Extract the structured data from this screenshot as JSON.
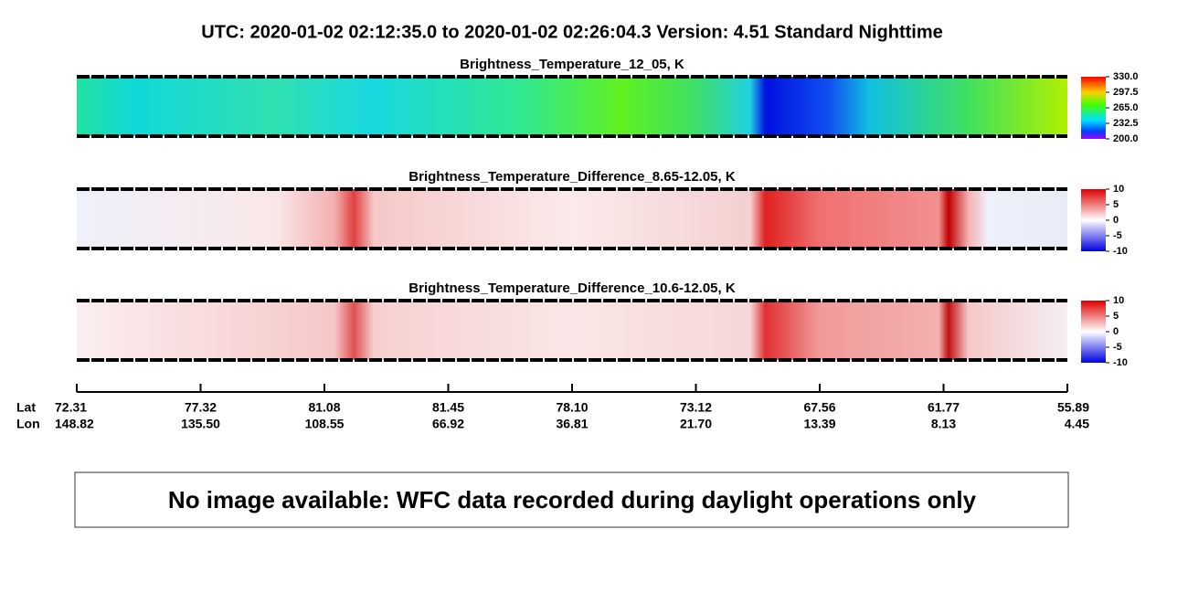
{
  "header": {
    "title": "UTC:  2020-01-02   02:12:35.0  to  2020-01-02   02:26:04.3    Version: 4.51  Standard Nighttime"
  },
  "panels": [
    {
      "title": "Brightness_Temperature_12_05, K",
      "colorbar": [
        "330.0",
        "297.5",
        "265.0",
        "232.5",
        "200.0"
      ]
    },
    {
      "title": "Brightness_Temperature_Difference_8.65-12.05, K",
      "colorbar": [
        "10",
        "5",
        "0",
        "-5",
        "-10"
      ]
    },
    {
      "title": "Brightness_Temperature_Difference_10.6-12.05, K",
      "colorbar": [
        "10",
        "5",
        "0",
        "-5",
        "-10"
      ]
    }
  ],
  "axis": {
    "lat_label": "Lat",
    "lon_label": "Lon",
    "lat": [
      "72.31",
      "77.32",
      "81.08",
      "81.45",
      "78.10",
      "73.12",
      "67.56",
      "61.77",
      "55.89"
    ],
    "lon": [
      "148.82",
      "135.50",
      "108.55",
      "66.92",
      "36.81",
      "21.70",
      "13.39",
      "8.13",
      "4.45"
    ]
  },
  "message": "No image available: WFC data recorded during daylight operations only"
}
